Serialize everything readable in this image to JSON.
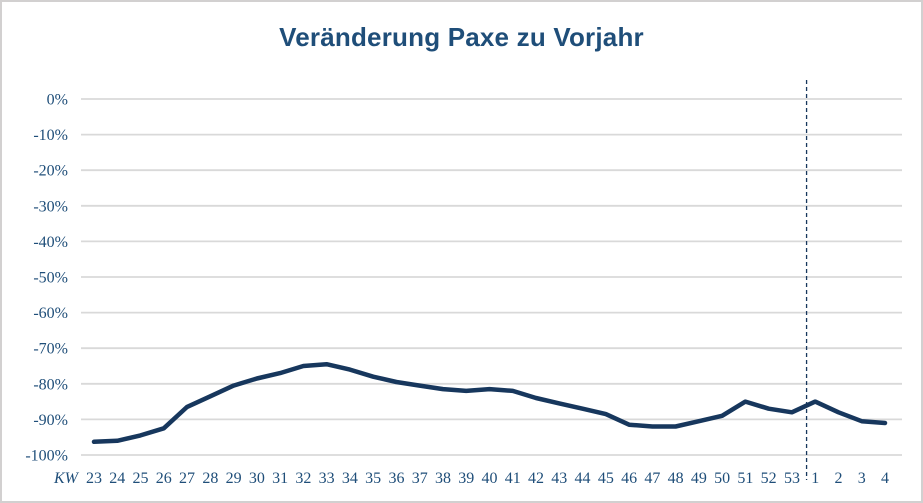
{
  "window": {
    "background_color": "#ffffff",
    "border_color": "#d2d0d0"
  },
  "chart_data": {
    "type": "line",
    "title": "Veränderung Paxe zu Vorjahr",
    "x_axis_prefix": "KW",
    "categories": [
      "23",
      "24",
      "25",
      "26",
      "27",
      "28",
      "29",
      "30",
      "31",
      "32",
      "33",
      "34",
      "35",
      "36",
      "37",
      "38",
      "39",
      "40",
      "41",
      "42",
      "43",
      "44",
      "45",
      "46",
      "47",
      "48",
      "49",
      "50",
      "51",
      "52",
      "53",
      "1",
      "2",
      "3",
      "4"
    ],
    "values": [
      -96.3,
      -96,
      -94.5,
      -92.5,
      -86.5,
      -83.5,
      -80.5,
      -78.5,
      -77,
      -75,
      -74.5,
      -76,
      -78,
      -79.5,
      -80.5,
      -81.5,
      -82,
      -81.5,
      -82,
      -84,
      -85.5,
      -87,
      -88.5,
      -91.5,
      -92,
      -92,
      -90.5,
      -89,
      -85,
      -87,
      -88,
      -85,
      -88,
      -90.5,
      -91
    ],
    "y_ticks": [
      "0%",
      "-10%",
      "-20%",
      "-30%",
      "-40%",
      "-50%",
      "-60%",
      "-70%",
      "-80%",
      "-90%",
      "-100%"
    ],
    "ylim": [
      -100,
      0
    ],
    "grid": true,
    "legend": "none",
    "separator_after_category": "53",
    "colors": {
      "line": "#17375d",
      "title": "#1f4e79",
      "tick_label": "#1f4e79",
      "gridline": "#d9d9d9",
      "separator": "#17375d"
    }
  }
}
